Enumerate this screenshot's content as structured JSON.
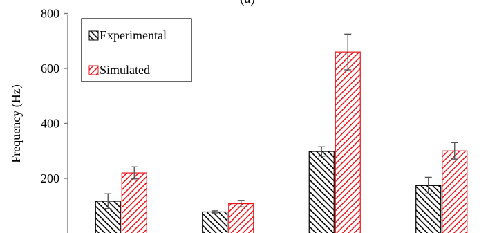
{
  "chart_data": {
    "type": "bar",
    "title": "(a)",
    "ylabel": "Frequency (Hz)",
    "xlabel": "",
    "ylim": [
      0,
      800
    ],
    "yticks": [
      200,
      400,
      600,
      800
    ],
    "categories": [
      "",
      "",
      "",
      ""
    ],
    "legend_position": "top-left",
    "series": [
      {
        "name": "Experimental",
        "color": "#000000",
        "pattern": "hatched",
        "values": [
          117,
          78,
          298,
          174
        ],
        "errors": [
          27,
          4,
          17,
          30
        ]
      },
      {
        "name": "Simulated",
        "color": "#e8151b",
        "pattern": "hatched",
        "values": [
          220,
          108,
          660,
          300
        ],
        "errors": [
          22,
          12,
          65,
          30
        ]
      }
    ]
  }
}
